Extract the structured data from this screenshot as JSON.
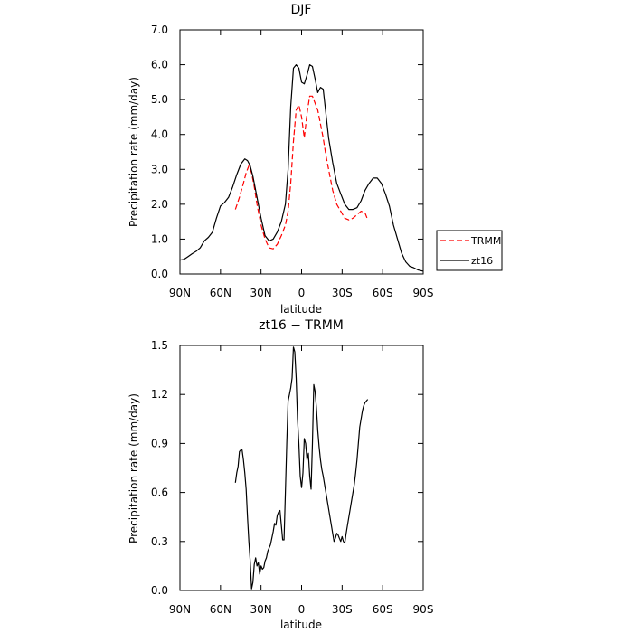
{
  "chart_data": [
    {
      "type": "line",
      "title": "DJF",
      "xlabel": "latitude",
      "ylabel": "Precipitation rate (mm/day)",
      "xlim": [
        90,
        -90
      ],
      "ylim": [
        0,
        7
      ],
      "x_ticks": [
        90,
        60,
        30,
        0,
        -30,
        -60,
        -90
      ],
      "x_tick_labels": [
        "90N",
        "60N",
        "30N",
        "0",
        "30S",
        "60S",
        "90S"
      ],
      "y_ticks": [
        0,
        1,
        2,
        3,
        4,
        5,
        6,
        7
      ],
      "y_tick_labels": [
        "0.0",
        "1.0",
        "2.0",
        "3.0",
        "4.0",
        "5.0",
        "6.0",
        "7.0"
      ],
      "legend_position": "right",
      "series": [
        {
          "name": "TRMM",
          "color": "#ff0000",
          "dash": "dashed",
          "x": [
            49,
            46,
            43,
            41,
            39,
            37,
            35,
            33,
            30,
            27,
            24,
            21,
            18,
            15,
            12,
            10,
            8,
            6,
            4,
            2,
            0,
            -2,
            -4,
            -6,
            -8,
            -10,
            -12,
            -14,
            -16,
            -18,
            -20,
            -23,
            -26,
            -29,
            -32,
            -35,
            -38,
            -41,
            -44,
            -47,
            -49
          ],
          "y": [
            1.85,
            2.2,
            2.6,
            2.9,
            3.1,
            2.9,
            2.5,
            2.0,
            1.4,
            1.0,
            0.75,
            0.72,
            0.85,
            1.1,
            1.4,
            1.8,
            2.6,
            3.8,
            4.7,
            4.85,
            4.5,
            3.9,
            4.6,
            5.1,
            5.1,
            4.9,
            4.7,
            4.3,
            3.9,
            3.4,
            3.0,
            2.4,
            2.0,
            1.8,
            1.6,
            1.55,
            1.6,
            1.7,
            1.8,
            1.75,
            1.55
          ]
        },
        {
          "name": "zt16",
          "color": "#000000",
          "dash": "solid",
          "x": [
            90,
            87,
            84,
            81,
            78,
            75,
            72,
            69,
            66,
            63,
            60,
            57,
            54,
            51,
            48,
            45,
            42,
            40,
            38,
            36,
            34,
            32,
            30,
            27,
            24,
            21,
            18,
            15,
            12,
            10,
            8,
            6,
            4,
            2,
            0,
            -2,
            -4,
            -6,
            -8,
            -10,
            -12,
            -14,
            -16,
            -18,
            -20,
            -23,
            -26,
            -29,
            -32,
            -35,
            -38,
            -41,
            -44,
            -47,
            -50,
            -53,
            -56,
            -59,
            -62,
            -65,
            -68,
            -71,
            -74,
            -77,
            -80,
            -83,
            -86,
            -90
          ],
          "y": [
            0.4,
            0.42,
            0.5,
            0.58,
            0.65,
            0.75,
            0.95,
            1.05,
            1.2,
            1.6,
            1.95,
            2.05,
            2.2,
            2.5,
            2.85,
            3.15,
            3.3,
            3.25,
            3.1,
            2.8,
            2.4,
            2.0,
            1.6,
            1.1,
            0.95,
            1.0,
            1.2,
            1.5,
            2.0,
            3.0,
            4.8,
            5.9,
            6.0,
            5.9,
            5.5,
            5.45,
            5.7,
            6.0,
            5.95,
            5.6,
            5.2,
            5.35,
            5.3,
            4.6,
            3.9,
            3.2,
            2.6,
            2.3,
            2.0,
            1.85,
            1.85,
            1.9,
            2.1,
            2.4,
            2.6,
            2.75,
            2.75,
            2.6,
            2.3,
            1.95,
            1.4,
            1.0,
            0.6,
            0.35,
            0.22,
            0.18,
            0.12,
            0.08
          ]
        }
      ]
    },
    {
      "type": "line",
      "title": "zt16 − TRMM",
      "xlabel": "latitude",
      "ylabel": "Precipitation rate (mm/day)",
      "xlim": [
        90,
        -90
      ],
      "ylim": [
        0,
        1.5
      ],
      "x_ticks": [
        90,
        60,
        30,
        0,
        -30,
        -60,
        -90
      ],
      "x_tick_labels": [
        "90N",
        "60N",
        "30N",
        "0",
        "30S",
        "60S",
        "90S"
      ],
      "y_ticks": [
        0,
        0.3,
        0.6,
        0.9,
        1.2,
        1.5
      ],
      "y_tick_labels": [
        "0.0",
        "0.3",
        "0.6",
        "0.9",
        "1.2",
        "1.5"
      ],
      "series": [
        {
          "color": "#000000",
          "dash": "solid",
          "x": [
            49,
            48,
            47,
            46,
            45,
            44,
            43,
            42,
            41,
            40,
            39,
            38,
            37,
            36,
            35,
            34,
            33,
            32,
            31,
            30,
            29,
            28,
            27,
            26,
            25,
            24,
            23,
            22,
            21,
            20,
            19,
            18,
            17,
            16,
            15,
            14,
            13,
            12,
            11,
            10,
            9,
            8,
            7,
            6,
            5,
            4,
            3,
            2,
            1,
            0,
            -1,
            -2,
            -3,
            -4,
            -5,
            -6,
            -7,
            -8,
            -9,
            -10,
            -11,
            -12,
            -13,
            -14,
            -15,
            -16,
            -17,
            -18,
            -19,
            -20,
            -21,
            -22,
            -23,
            -24,
            -25,
            -26,
            -27,
            -28,
            -29,
            -30,
            -31,
            -32,
            -33,
            -34,
            -35,
            -36,
            -37,
            -38,
            -39,
            -40,
            -41,
            -42,
            -43,
            -44,
            -45,
            -46,
            -47,
            -48,
            -49
          ],
          "y": [
            0.66,
            0.72,
            0.76,
            0.85,
            0.86,
            0.86,
            0.8,
            0.72,
            0.62,
            0.45,
            0.3,
            0.18,
            0.01,
            0.05,
            0.16,
            0.2,
            0.15,
            0.17,
            0.1,
            0.15,
            0.13,
            0.14,
            0.18,
            0.2,
            0.24,
            0.26,
            0.28,
            0.32,
            0.36,
            0.41,
            0.4,
            0.46,
            0.48,
            0.49,
            0.4,
            0.31,
            0.31,
            0.6,
            0.9,
            1.16,
            1.2,
            1.24,
            1.3,
            1.49,
            1.46,
            1.3,
            1.05,
            0.9,
            0.7,
            0.63,
            0.72,
            0.93,
            0.9,
            0.8,
            0.84,
            0.7,
            0.62,
            0.9,
            1.26,
            1.22,
            1.12,
            0.98,
            0.88,
            0.8,
            0.74,
            0.7,
            0.65,
            0.6,
            0.55,
            0.5,
            0.45,
            0.4,
            0.35,
            0.3,
            0.32,
            0.35,
            0.34,
            0.32,
            0.3,
            0.33,
            0.3,
            0.29,
            0.35,
            0.4,
            0.45,
            0.5,
            0.55,
            0.6,
            0.65,
            0.72,
            0.8,
            0.9,
            1.0,
            1.05,
            1.1,
            1.13,
            1.15,
            1.16,
            1.17
          ]
        }
      ]
    }
  ]
}
